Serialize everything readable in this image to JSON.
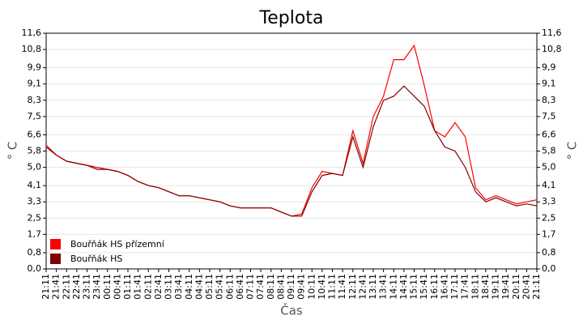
{
  "chart_data": {
    "type": "line",
    "title": "Teplota",
    "y_label": "° C",
    "x_label": "Čas",
    "categories": [
      "21:11",
      "21:41",
      "22:11",
      "22:41",
      "23:11",
      "23:41",
      "00:11",
      "00:41",
      "01:11",
      "01:41",
      "02:11",
      "02:41",
      "03:11",
      "03:41",
      "04:11",
      "04:41",
      "05:11",
      "05:41",
      "06:11",
      "06:41",
      "07:11",
      "07:41",
      "08:11",
      "08:41",
      "09:11",
      "09:41",
      "10:11",
      "10:41",
      "11:11",
      "11:41",
      "12:11",
      "12:41",
      "13:11",
      "13:41",
      "14:11",
      "14:41",
      "15:11",
      "15:41",
      "16:11",
      "16:41",
      "17:11",
      "17:41",
      "18:11",
      "18:41",
      "19:11",
      "19:41",
      "20:11",
      "20:41",
      "21:11"
    ],
    "series": [
      {
        "name": "Bouřňák HS přízemní",
        "color": "#ff0000",
        "values": [
          6.1,
          5.6,
          5.3,
          5.2,
          5.1,
          5.0,
          4.9,
          4.8,
          4.6,
          4.3,
          4.1,
          4.0,
          3.8,
          3.6,
          3.6,
          3.5,
          3.4,
          3.3,
          3.1,
          3.0,
          3.0,
          3.0,
          3.0,
          2.8,
          2.6,
          2.7,
          4.0,
          4.8,
          4.7,
          4.6,
          6.8,
          5.2,
          7.5,
          8.5,
          10.3,
          10.3,
          11.0,
          9.0,
          6.8,
          6.5,
          7.2,
          6.5,
          4.0,
          3.4,
          3.6,
          3.4,
          3.2,
          3.3,
          3.4
        ]
      },
      {
        "name": "Bouřňák HS",
        "color": "#800000",
        "values": [
          6.0,
          5.6,
          5.3,
          5.2,
          5.1,
          4.9,
          4.9,
          4.8,
          4.6,
          4.3,
          4.1,
          4.0,
          3.8,
          3.6,
          3.6,
          3.5,
          3.4,
          3.3,
          3.1,
          3.0,
          3.0,
          3.0,
          3.0,
          2.8,
          2.6,
          2.6,
          3.8,
          4.6,
          4.7,
          4.6,
          6.5,
          5.0,
          7.0,
          8.3,
          8.5,
          9.0,
          8.5,
          8.0,
          6.8,
          6.0,
          5.8,
          5.0,
          3.8,
          3.3,
          3.5,
          3.3,
          3.1,
          3.2,
          3.1
        ]
      }
    ],
    "ylim": [
      0,
      11.6
    ],
    "yticks": [
      {
        "value": 0,
        "label": "0,0"
      },
      {
        "value": 0.8,
        "label": "0,8"
      },
      {
        "value": 1.7,
        "label": "1,7"
      },
      {
        "value": 2.5,
        "label": "2,5"
      },
      {
        "value": 3.3,
        "label": "3,3"
      },
      {
        "value": 4.1,
        "label": "4,1"
      },
      {
        "value": 5.0,
        "label": "5,0"
      },
      {
        "value": 5.8,
        "label": "5,8"
      },
      {
        "value": 6.6,
        "label": "6,6"
      },
      {
        "value": 7.5,
        "label": "7,5"
      },
      {
        "value": 8.3,
        "label": "8,3"
      },
      {
        "value": 9.1,
        "label": "9,1"
      },
      {
        "value": 9.9,
        "label": "9,9"
      },
      {
        "value": 10.8,
        "label": "10,8"
      },
      {
        "value": 11.6,
        "label": "11,6"
      }
    ],
    "grid": true
  }
}
